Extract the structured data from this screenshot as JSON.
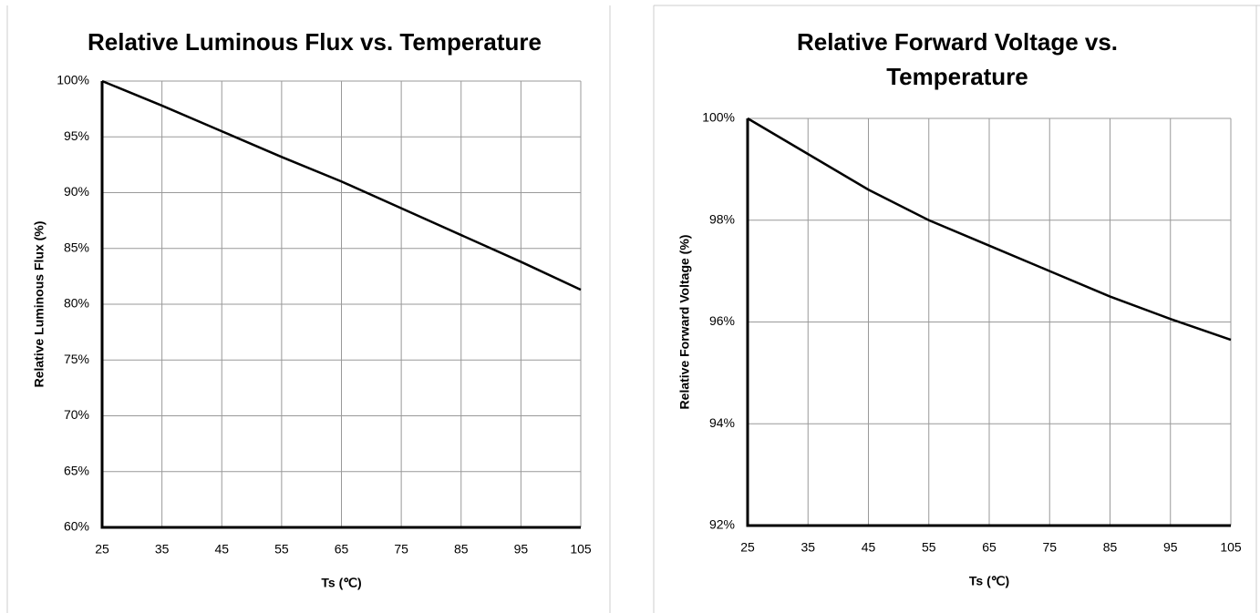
{
  "chart_data": [
    {
      "type": "line",
      "title": "Relative Luminous Flux vs. Temperature",
      "x_label": "Ts (℃)",
      "y_label": "Relative Luminous Flux (%)",
      "x": [
        25,
        35,
        45,
        55,
        65,
        75,
        85,
        95,
        105
      ],
      "series": [
        {
          "name": "Relative Luminous Flux",
          "color": "#000000",
          "values": [
            100,
            97.8,
            95.5,
            93.2,
            91,
            88.6,
            86.2,
            83.8,
            81.3
          ]
        }
      ],
      "xlim": [
        25,
        105
      ],
      "xticks": [
        25,
        35,
        45,
        55,
        65,
        75,
        85,
        95,
        105
      ],
      "ylim": [
        60,
        100
      ],
      "yticks": [
        {
          "value": 60,
          "label": "60%"
        },
        {
          "value": 65,
          "label": "65%"
        },
        {
          "value": 70,
          "label": "70%"
        },
        {
          "value": 75,
          "label": "75%"
        },
        {
          "value": 80,
          "label": "80%"
        },
        {
          "value": 85,
          "label": "85%"
        },
        {
          "value": 90,
          "label": "90%"
        },
        {
          "value": 95,
          "label": "95%"
        },
        {
          "value": 100,
          "label": "100%"
        }
      ],
      "grid": true
    },
    {
      "type": "line",
      "title": "Relative Forward Voltage vs. Temperature",
      "x_label": "Ts (℃)",
      "y_label": "Relative Forward Voltage (%)",
      "x": [
        25,
        35,
        45,
        55,
        65,
        75,
        85,
        95,
        105
      ],
      "series": [
        {
          "name": "Relative Forward Voltage",
          "color": "#000000",
          "values": [
            100,
            99.3,
            98.6,
            98.0,
            97.5,
            97.0,
            96.5,
            96.06,
            95.65
          ]
        }
      ],
      "xlim": [
        25,
        105
      ],
      "xticks": [
        25,
        35,
        45,
        55,
        65,
        75,
        85,
        95,
        105
      ],
      "ylim": [
        92,
        100
      ],
      "yticks": [
        {
          "value": 92,
          "label": "92%"
        },
        {
          "value": 94,
          "label": "94%"
        },
        {
          "value": 96,
          "label": "96%"
        },
        {
          "value": 98,
          "label": "98%"
        },
        {
          "value": 100,
          "label": "100%"
        }
      ],
      "grid": true
    }
  ]
}
